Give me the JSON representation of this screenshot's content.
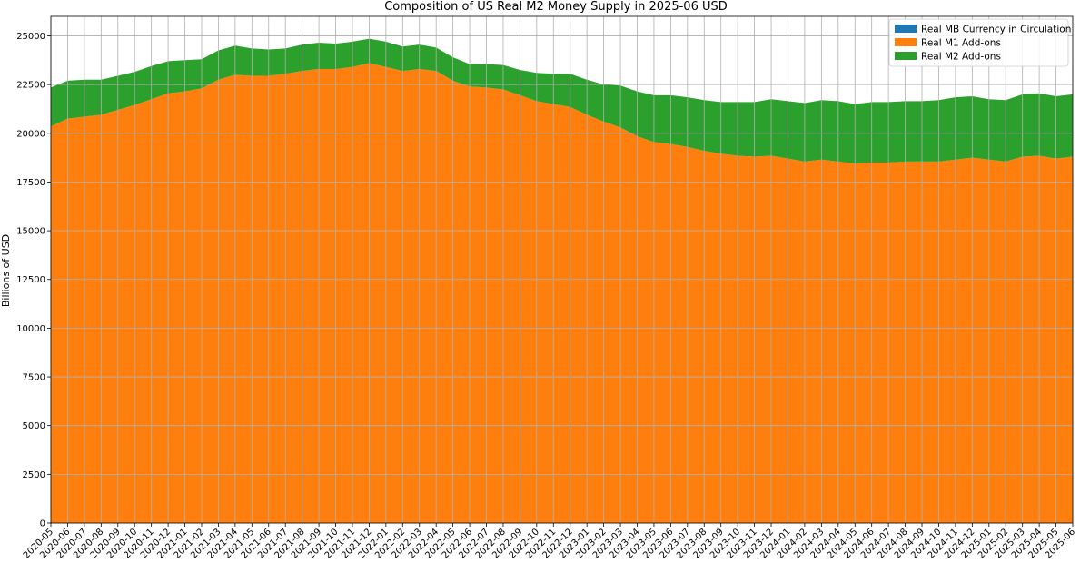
{
  "chart_data": {
    "type": "area",
    "stacked": true,
    "title": "Composition of US Real M2 Money Supply in 2025-06 USD",
    "xlabel": "",
    "ylabel": "Billions of USD",
    "ylim": [
      0,
      26000
    ],
    "yticks": [
      0,
      2500,
      5000,
      7500,
      10000,
      12500,
      15000,
      17500,
      20000,
      22500,
      25000
    ],
    "grid": true,
    "legend_position": "top-right",
    "categories": [
      "2020-05",
      "2020-06",
      "2020-07",
      "2020-08",
      "2020-09",
      "2020-10",
      "2020-11",
      "2020-12",
      "2021-01",
      "2021-02",
      "2021-03",
      "2021-04",
      "2021-05",
      "2021-06",
      "2021-07",
      "2021-08",
      "2021-09",
      "2021-10",
      "2021-11",
      "2021-12",
      "2022-01",
      "2022-02",
      "2022-03",
      "2022-04",
      "2022-05",
      "2022-06",
      "2022-07",
      "2022-08",
      "2022-09",
      "2022-10",
      "2022-11",
      "2022-12",
      "2023-01",
      "2023-02",
      "2023-03",
      "2023-04",
      "2023-05",
      "2023-06",
      "2023-07",
      "2023-08",
      "2023-09",
      "2023-10",
      "2023-11",
      "2023-12",
      "2024-01",
      "2024-02",
      "2024-03",
      "2024-04",
      "2024-05",
      "2024-06",
      "2024-07",
      "2024-08",
      "2024-09",
      "2024-10",
      "2024-11",
      "2024-12",
      "2025-01",
      "2025-02",
      "2025-03",
      "2025-04",
      "2025-05",
      "2025-06"
    ],
    "series": [
      {
        "name": "Real MB Currency in Circulation",
        "color": "#1f77b4",
        "values": [
          0,
          0,
          0,
          0,
          0,
          0,
          0,
          0,
          0,
          0,
          0,
          0,
          0,
          0,
          0,
          0,
          0,
          0,
          0,
          0,
          0,
          0,
          0,
          0,
          0,
          0,
          0,
          0,
          0,
          0,
          0,
          0,
          0,
          0,
          0,
          0,
          0,
          0,
          0,
          0,
          0,
          0,
          0,
          0,
          0,
          0,
          0,
          0,
          0,
          0,
          0,
          0,
          0,
          0,
          0,
          0,
          0,
          0,
          0,
          0,
          0,
          0
        ]
      },
      {
        "name": "Real M1 Add-ons",
        "color": "#ff7f0e",
        "values": [
          20350,
          20750,
          20850,
          20950,
          21200,
          21450,
          21750,
          22050,
          22150,
          22300,
          22750,
          23000,
          22950,
          22950,
          23050,
          23200,
          23300,
          23300,
          23400,
          23600,
          23400,
          23200,
          23300,
          23200,
          22700,
          22400,
          22350,
          22250,
          21950,
          21650,
          21500,
          21350,
          20950,
          20600,
          20300,
          19850,
          19550,
          19450,
          19300,
          19100,
          18950,
          18850,
          18800,
          18850,
          18700,
          18550,
          18650,
          18550,
          18450,
          18500,
          18500,
          18550,
          18550,
          18550,
          18650,
          18750,
          18650,
          18550,
          18800,
          18850,
          18700,
          18800
        ]
      },
      {
        "name": "Real M2 Add-ons",
        "color": "#2ca02c",
        "values": [
          2000,
          1950,
          1900,
          1800,
          1750,
          1700,
          1700,
          1650,
          1600,
          1500,
          1500,
          1500,
          1400,
          1350,
          1300,
          1350,
          1350,
          1300,
          1300,
          1250,
          1300,
          1250,
          1250,
          1200,
          1200,
          1150,
          1200,
          1250,
          1300,
          1450,
          1550,
          1700,
          1800,
          1900,
          2150,
          2300,
          2400,
          2500,
          2550,
          2600,
          2650,
          2750,
          2800,
          2900,
          2950,
          3000,
          3050,
          3100,
          3050,
          3100,
          3100,
          3100,
          3100,
          3150,
          3200,
          3150,
          3100,
          3150,
          3200,
          3200,
          3200,
          3200
        ]
      }
    ]
  }
}
